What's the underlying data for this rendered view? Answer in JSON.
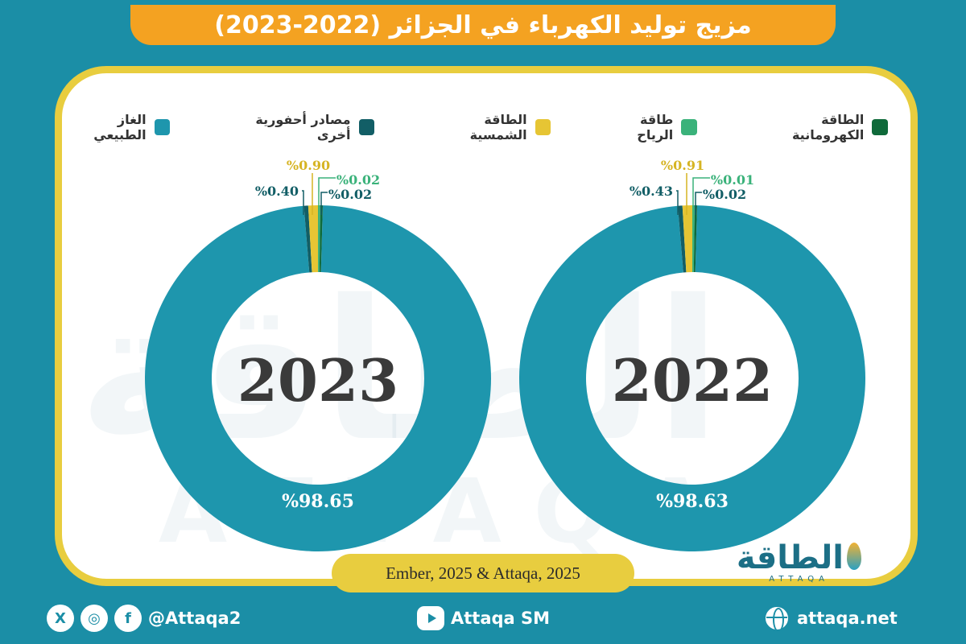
{
  "title": "مزيج توليد الكهرباء في الجزائر (2022-2023)",
  "colors": {
    "background": "#1b8ea6",
    "title_bar": "#f4a221",
    "card_border": "#e8cd3f",
    "natural_gas": "#1e96ad",
    "other_fossil": "#125e66",
    "solar": "#e6c534",
    "wind": "#3ab27a",
    "hydro": "#0f6a3a"
  },
  "legend": [
    {
      "label": "الغاز الطبيعي",
      "color": "#1e96ad"
    },
    {
      "label": "مصادر أحفورية أخرى",
      "color": "#125e66"
    },
    {
      "label": "الطاقة الشمسية",
      "color": "#e6c534"
    },
    {
      "label": "طاقة الرياح",
      "color": "#3ab27a"
    },
    {
      "label": "الطاقة الكهرومانية",
      "color": "#0f6a3a"
    }
  ],
  "chart_data": [
    {
      "type": "pie",
      "center_label": "2022",
      "categories": [
        "الغاز الطبيعي",
        "مصادر أحفورية أخرى",
        "الطاقة الشمسية",
        "طاقة الرياح",
        "الطاقة الكهرومانية"
      ],
      "values": [
        98.63,
        0.43,
        0.91,
        0.01,
        0.02
      ],
      "data_labels": [
        "%98.63",
        "%0.43",
        "%0.91",
        "%0.01",
        "%0.02"
      ]
    },
    {
      "type": "pie",
      "center_label": "2023",
      "categories": [
        "الغاز الطبيعي",
        "مصادر أحفورية أخرى",
        "الطاقة الشمسية",
        "طاقة الرياح",
        "الطاقة الكهرومانية"
      ],
      "values": [
        98.65,
        0.4,
        0.9,
        0.02,
        0.02
      ],
      "data_labels": [
        "%98.65",
        "%0.40",
        "%0.90",
        "%0.02",
        "%0.02"
      ]
    }
  ],
  "source": "Ember, 2025 & Attaqa, 2025",
  "logo": {
    "arabic": "الطاقة",
    "english": "ATTAQA"
  },
  "footer": {
    "social_handle": "@Attaqa2",
    "youtube": "Attaqa SM",
    "website": "attaqa.net",
    "icons": [
      "x-icon",
      "instagram-icon",
      "facebook-icon",
      "youtube-icon",
      "globe-icon"
    ],
    "icon_glyphs": {
      "x": "X",
      "instagram": "◎",
      "facebook": "f"
    }
  },
  "watermark": {
    "arabic": "الطاقة",
    "english": "ATTAQA"
  }
}
